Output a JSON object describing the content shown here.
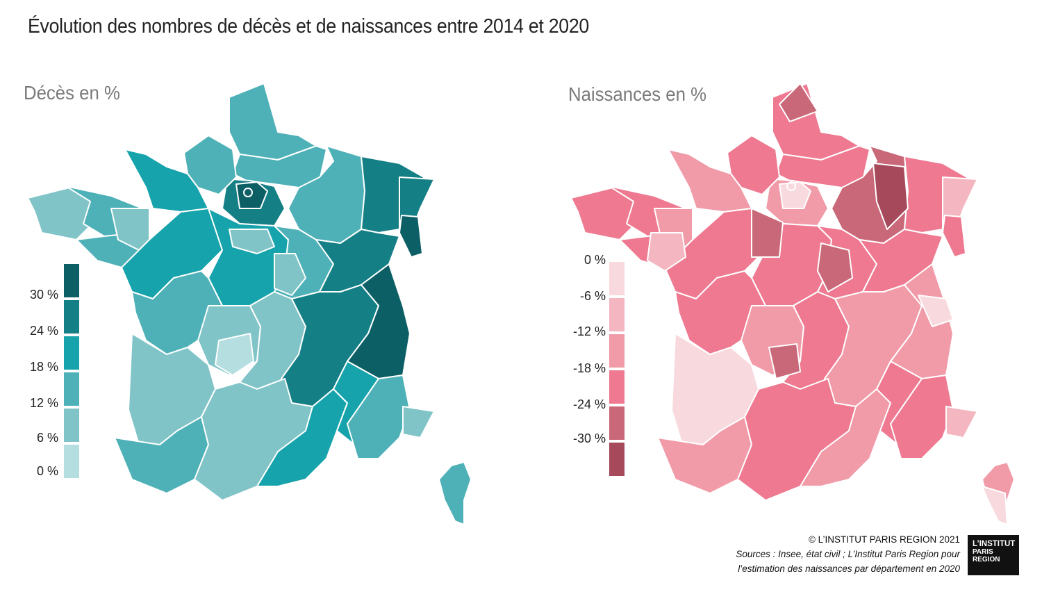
{
  "title": "Évolution des nombres de décès et de naissances entre 2014 et 2020",
  "maps": {
    "deces": {
      "title": "Décès en %",
      "legend_labels": [
        "30 %",
        "24 %",
        "18 %",
        "12 %",
        "6 %",
        "0 %"
      ],
      "legend_colors": [
        "#0d5f66",
        "#157f86",
        "#16a3ac",
        "#4eb1b7",
        "#80c4c8",
        "#b5dee0"
      ],
      "region_colors": {
        "nord_pas_de_calais": "#4eb1b7",
        "picardie": "#4eb1b7",
        "ile_de_france_outer": "#157f86",
        "ile_de_france_core": "#0d5f66",
        "champagne_ardenne": "#4eb1b7",
        "lorraine": "#157f86",
        "alsace": "#157f86",
        "haut_rhin": "#0d5f66",
        "haute_normandie": "#4eb1b7",
        "basse_normandie": "#16a3ac",
        "bretagne_finistere": "#80c4c8",
        "bretagne_cotes": "#4eb1b7",
        "bretagne_morbihan": "#4eb1b7",
        "bretagne_ille": "#80c4c8",
        "pays_de_la_loire": "#16a3ac",
        "centre": "#16a3ac",
        "centre_light": "#80c4c8",
        "bourgogne": "#4eb1b7",
        "bourgogne_light": "#80c4c8",
        "franche_comte": "#157f86",
        "poitou_charentes": "#4eb1b7",
        "limousin": "#80c4c8",
        "creuse": "#b5dee0",
        "auvergne": "#80c4c8",
        "rhone_alpes_west": "#157f86",
        "rhone_alpes_east": "#0d5f66",
        "aquitaine": "#80c4c8",
        "landes": "#4eb1b7",
        "midi_pyrenees": "#80c4c8",
        "languedoc": "#16a3ac",
        "paca_west": "#16a3ac",
        "paca_east": "#4eb1b7",
        "alpes_maritimes": "#80c4c8",
        "corse": "#4eb1b7"
      }
    },
    "naissances": {
      "title": "Naissances en %",
      "legend_labels": [
        "0 %",
        "-6 %",
        "-12 %",
        "-18 %",
        "-24 %",
        "-30 %"
      ],
      "legend_colors": [
        "#f8d9de",
        "#f4b7c1",
        "#f19aa8",
        "#ee7990",
        "#c96879",
        "#a64a5b"
      ],
      "region_colors": {
        "nord_pas_de_calais": "#ee7990",
        "nord_dark": "#c96879",
        "picardie": "#ee7990",
        "ile_de_france_outer": "#f19aa8",
        "ile_de_france_core": "#f8d9de",
        "champagne_ardenne": "#c96879",
        "lorraine": "#ee7990",
        "meuse": "#a64a5b",
        "alsace": "#f4b7c1",
        "haut_rhin": "#ee7990",
        "haute_normandie": "#ee7990",
        "basse_normandie": "#f19aa8",
        "bretagne_finistere": "#ee7990",
        "bretagne_cotes": "#ee7990",
        "bretagne_morbihan": "#ee7990",
        "bretagne_ille": "#f19aa8",
        "pays_de_la_loire": "#ee7990",
        "loire_atlantique": "#f4b7c1",
        "centre": "#ee7990",
        "centre_dark": "#c96879",
        "bourgogne": "#ee7990",
        "nievre": "#c96879",
        "franche_comte": "#ee7990",
        "poitou_charentes": "#ee7990",
        "limousin": "#f19aa8",
        "correze": "#c96879",
        "auvergne": "#ee7990",
        "rhone_alpes_west": "#f19aa8",
        "rhone_alpes_east": "#f19aa8",
        "haute_savoie": "#f8d9de",
        "aquitaine": "#f8d9de",
        "landes": "#f19aa8",
        "midi_pyrenees": "#ee7990",
        "languedoc": "#f19aa8",
        "paca_west": "#ee7990",
        "paca_east": "#ee7990",
        "alpes_maritimes": "#f4b7c1",
        "corse": "#f19aa8",
        "corse_sud": "#f8d9de"
      }
    }
  },
  "footer": {
    "copyright": "© L’INSTITUT PARIS REGION 2021",
    "sources_line1": "Sources :  Insee, état civil ; L’Institut Paris Region pour",
    "sources_line2": "l’estimation des naissances par département en 2020"
  },
  "logo": {
    "line1": "L’INSTITUT",
    "line2": "PARIS",
    "line3": "REGION"
  }
}
